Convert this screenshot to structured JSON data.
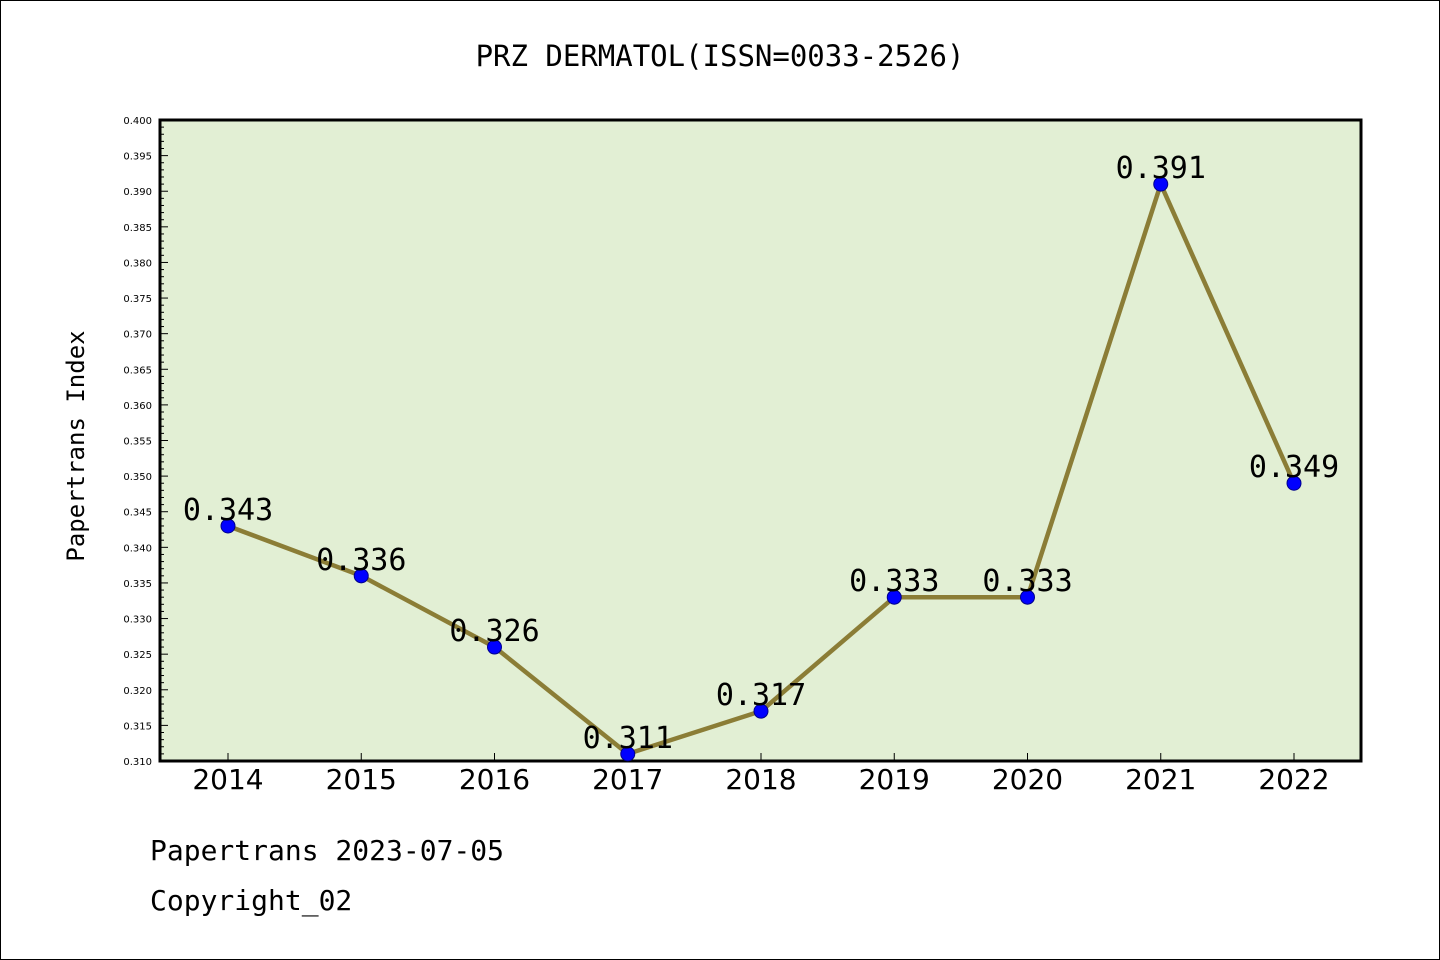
{
  "chart_data": {
    "type": "line",
    "title": "PRZ DERMATOL(ISSN=0033-2526)",
    "xlabel": "",
    "ylabel": "Papertrans Index",
    "categories": [
      "2014",
      "2015",
      "2016",
      "2017",
      "2018",
      "2019",
      "2020",
      "2021",
      "2022"
    ],
    "values": [
      0.343,
      0.336,
      0.326,
      0.311,
      0.317,
      0.333,
      0.333,
      0.391,
      0.349
    ],
    "data_labels": [
      "0.343",
      "0.336",
      "0.326",
      "0.311",
      "0.317",
      "0.333",
      "0.333",
      "0.391",
      "0.349"
    ],
    "ylim": [
      0.31,
      0.4
    ],
    "yticks": [
      "0.310",
      "0.315",
      "0.320",
      "0.325",
      "0.330",
      "0.335",
      "0.340",
      "0.345",
      "0.350",
      "0.355",
      "0.360",
      "0.365",
      "0.370",
      "0.375",
      "0.380",
      "0.385",
      "0.390",
      "0.395",
      "0.400"
    ],
    "grid": false,
    "colors": {
      "plot_background": "#e2efd4",
      "line": "#8b7d36",
      "marker": "#0000ff"
    }
  },
  "footer": {
    "line1": "Papertrans 2023-07-05",
    "line2": "Copyright_02"
  }
}
